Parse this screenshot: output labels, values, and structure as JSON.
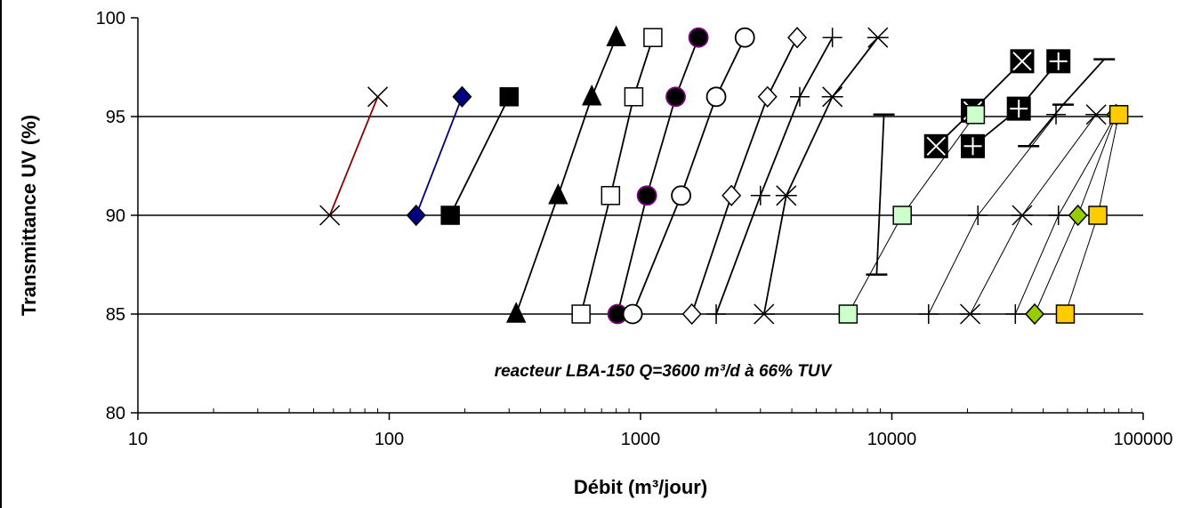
{
  "chart_data": {
    "type": "scatter",
    "title": "",
    "xlabel": "Débit (m³/jour)",
    "ylabel": "Transmittance UV (%)",
    "xscale": "log",
    "xlim": [
      10,
      100000
    ],
    "ylim": [
      80,
      100
    ],
    "xticks": [
      "10",
      "100",
      "1000",
      "10000",
      "100000"
    ],
    "yticks": [
      "80",
      "85",
      "90",
      "95",
      "100"
    ],
    "grid": "horizontal lines at 85, 90, 95",
    "legend": "none",
    "annotation": "reacteur LBA-150 Q=3600 m³/d à 66% TUV",
    "series": [
      {
        "marker": "x",
        "line": "#8b0000",
        "points": [
          [
            58,
            90
          ],
          [
            90,
            96
          ]
        ]
      },
      {
        "marker": "diamond",
        "fill": "#000080",
        "line": "#000080",
        "points": [
          [
            128,
            90
          ],
          [
            195,
            96
          ]
        ]
      },
      {
        "marker": "square",
        "fill": "#000000",
        "line": "#000000",
        "points": [
          [
            175,
            90
          ],
          [
            300,
            96
          ]
        ]
      },
      {
        "marker": "triangle",
        "fill": "#000000",
        "line": "#000000",
        "points": [
          [
            320,
            85
          ],
          [
            470,
            91
          ],
          [
            640,
            96
          ],
          [
            800,
            99
          ]
        ]
      },
      {
        "marker": "square",
        "fill": "#ffffff",
        "line": "#000000",
        "points": [
          [
            580,
            85
          ],
          [
            760,
            91
          ],
          [
            940,
            96
          ],
          [
            1120,
            99
          ]
        ]
      },
      {
        "marker": "circle",
        "fill": "#000000",
        "stroke": "#800080",
        "line": "#000000",
        "points": [
          [
            810,
            85
          ],
          [
            1060,
            91
          ],
          [
            1380,
            96
          ],
          [
            1700,
            99
          ]
        ]
      },
      {
        "marker": "circle",
        "fill": "#ffffff",
        "line": "#000000",
        "points": [
          [
            930,
            85
          ],
          [
            1450,
            91
          ],
          [
            2000,
            96
          ],
          [
            2600,
            99
          ]
        ]
      },
      {
        "marker": "diamond",
        "fill": "#ffffff",
        "line": "#000000",
        "points": [
          [
            1600,
            85
          ],
          [
            2300,
            91
          ],
          [
            3200,
            96
          ],
          [
            4200,
            99
          ]
        ]
      },
      {
        "marker": "plus",
        "line": "#000000",
        "points": [
          [
            2000,
            85
          ],
          [
            3000,
            91
          ],
          [
            4300,
            96
          ],
          [
            5800,
            99
          ]
        ]
      },
      {
        "marker": "asterisk",
        "line": "#000000",
        "points": [
          [
            3100,
            85
          ],
          [
            3800,
            91
          ],
          [
            5800,
            96
          ],
          [
            8800,
            99
          ]
        ]
      },
      {
        "marker": "dash",
        "line": "#000000",
        "points": [
          [
            8700,
            87
          ],
          [
            9300,
            95.1
          ]
        ]
      },
      {
        "marker": "boxed-x",
        "fill": "#000000",
        "line": "#000000",
        "points": [
          [
            15000,
            93.5
          ],
          [
            21000,
            95.3
          ],
          [
            33000,
            97.8
          ]
        ]
      },
      {
        "marker": "boxed-plus",
        "fill": "#000000",
        "line": "#000000",
        "points": [
          [
            21000,
            93.5
          ],
          [
            32000,
            95.4
          ],
          [
            46000,
            97.8
          ]
        ]
      },
      {
        "marker": "dash",
        "line": "#000000",
        "points": [
          [
            35000,
            93.5
          ],
          [
            48000,
            95.6
          ],
          [
            70000,
            97.9
          ]
        ]
      },
      {
        "marker": "square",
        "fill": "#ccffcc",
        "line": "#000000",
        "points": [
          [
            6700,
            85
          ],
          [
            11000,
            90
          ],
          [
            21500,
            95.1
          ]
        ]
      },
      {
        "marker": "plus",
        "line": "#000000",
        "points": [
          [
            14000,
            85
          ],
          [
            22000,
            90
          ],
          [
            45000,
            95.1
          ]
        ]
      },
      {
        "marker": "asterisk",
        "line": "#000000",
        "points": [
          [
            20500,
            85
          ],
          [
            33000,
            90
          ],
          [
            65000,
            95.1
          ]
        ]
      },
      {
        "marker": "plus",
        "line": "#000000",
        "points": [
          [
            31000,
            85
          ],
          [
            46000,
            90
          ],
          [
            78000,
            95.1
          ]
        ]
      },
      {
        "marker": "diamond",
        "fill": "#99cc00",
        "line": "#000000",
        "points": [
          [
            37000,
            85
          ],
          [
            55000,
            90
          ],
          [
            78000,
            95.1
          ]
        ]
      },
      {
        "marker": "square",
        "fill": "#ffcc00",
        "line": "#000000",
        "points": [
          [
            49000,
            85
          ],
          [
            66000,
            90
          ],
          [
            80000,
            95.1
          ]
        ]
      }
    ]
  }
}
